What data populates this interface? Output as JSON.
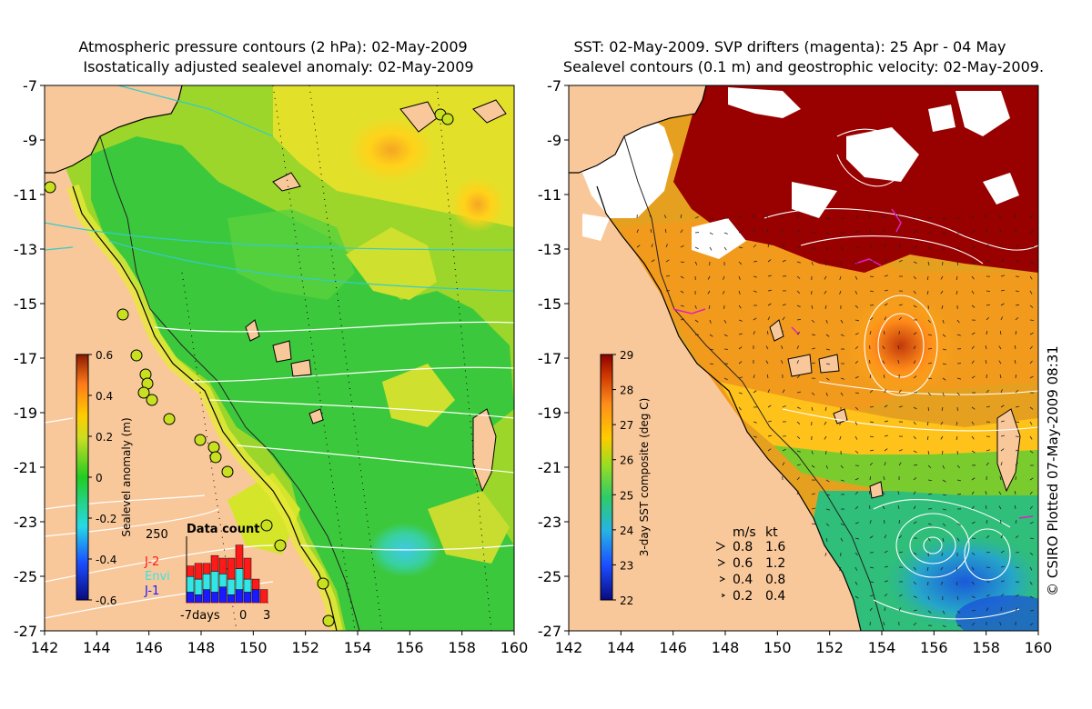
{
  "left_panel": {
    "title_line1": "Atmospheric pressure contours (2 hPa): 02-May-2009",
    "title_line2": "Isostatically adjusted sealevel anomaly: 02-May-2009",
    "colorbar": {
      "label": "Sealevel anomaly (m)",
      "ticks": [
        "0.6",
        "0.4",
        "0.2",
        "0",
        "-0.2",
        "-0.4",
        "-0.6"
      ]
    },
    "data_count": {
      "title": "Data count",
      "ymax_label": "250",
      "legend": [
        "J-2",
        "Envi",
        "J-1"
      ],
      "legend_colors": [
        "#ff1a1a",
        "#33e6e6",
        "#1a1aff"
      ],
      "xlabels": [
        "-7days",
        "0",
        "3"
      ],
      "bars": [
        {
          "j1": 40,
          "envi": 60,
          "j2": 40
        },
        {
          "j1": 30,
          "envi": 60,
          "j2": 60
        },
        {
          "j1": 50,
          "envi": 60,
          "j2": 40
        },
        {
          "j1": 40,
          "envi": 80,
          "j2": 60
        },
        {
          "j1": 60,
          "envi": 50,
          "j2": 60
        },
        {
          "j1": 30,
          "envi": 60,
          "j2": 80
        },
        {
          "j1": 50,
          "envi": 80,
          "j2": 90
        },
        {
          "j1": 40,
          "envi": 50,
          "j2": 80
        },
        {
          "j1": 50,
          "envi": 0,
          "j2": 40
        },
        {
          "j1": 0,
          "envi": 0,
          "j2": 50
        }
      ]
    }
  },
  "right_panel": {
    "title_line1": "SST: 02-May-2009. SVP drifters (magenta): 25 Apr - 04 May",
    "title_line2": "Sealevel contours (0.1 m) and geostrophic velocity: 02-May-2009.",
    "colorbar": {
      "label": "3-day SST composite (deg C)",
      "ticks": [
        "29",
        "28",
        "27",
        "26",
        "25",
        "24",
        "23",
        "22"
      ]
    },
    "velocity_legend": {
      "header_ms": "m/s",
      "header_kt": "kt",
      "rows": [
        {
          "ms": "0.8",
          "kt": "1.6"
        },
        {
          "ms": "0.6",
          "kt": "1.2"
        },
        {
          "ms": "0.4",
          "kt": "0.8"
        },
        {
          "ms": "0.2",
          "kt": "0.4"
        }
      ]
    }
  },
  "axes": {
    "lat_labels": [
      "-7",
      "-9",
      "-11",
      "-13",
      "-15",
      "-17",
      "-19",
      "-21",
      "-23",
      "-25",
      "-27"
    ],
    "lon_labels": [
      "142",
      "144",
      "146",
      "148",
      "150",
      "152",
      "154",
      "156",
      "158",
      "160"
    ]
  },
  "credit": "© CSIRO Plotted 07-May-2009 08:31",
  "colors": {
    "land": "#f9c89a",
    "sla_green": "#33cc33",
    "sla_yellow": "#d9e633",
    "sst_darkred": "#990000",
    "sst_orange": "#ff8c1a"
  }
}
